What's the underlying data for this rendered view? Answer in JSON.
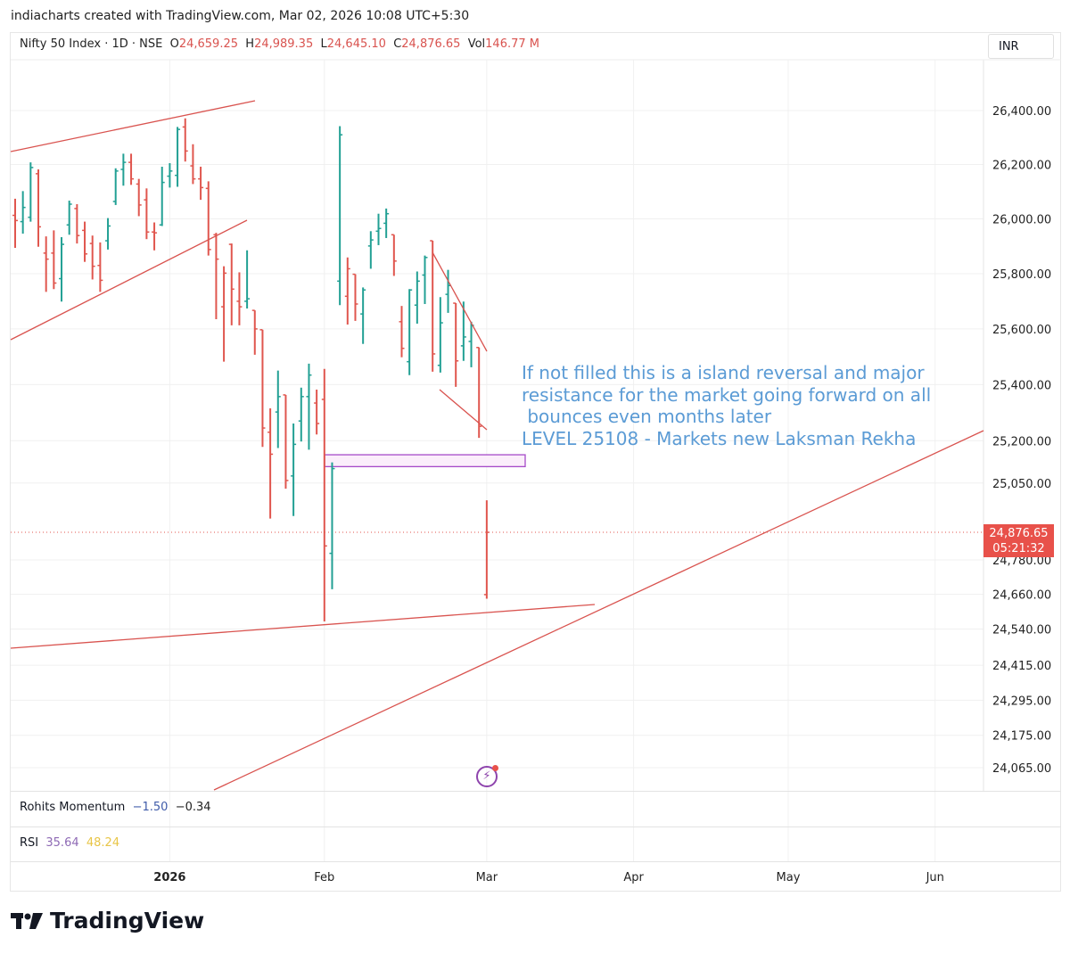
{
  "caption": "indiacharts created with TradingView.com, Mar 02, 2026 10:08 UTC+5:30",
  "legend": {
    "symbol": "Nifty 50 Index · 1D · NSE",
    "o_label": "O",
    "o": "24,659.25",
    "h_label": "H",
    "h": "24,989.35",
    "l_label": "L",
    "l": "24,645.10",
    "c_label": "C",
    "c": "24,876.65",
    "vol_label": "Vol",
    "vol": "146.77 M"
  },
  "currency": "INR",
  "price_tag": {
    "price": "24,876.65",
    "countdown": "05:21:32"
  },
  "annotation": "If not filled this is a island reversal and major\nresistance for the market going forward on all\n bounces even months later\nLEVEL 25108 - Markets new Laksman Rekha",
  "indicators": {
    "momentum": {
      "name": "Rohits Momentum",
      "v1": "−1.50",
      "v2": "−0.34"
    },
    "rsi": {
      "name": "RSI",
      "v1": "35.64",
      "v2": "48.24"
    }
  },
  "logo": "TradingView",
  "colors": {
    "up": "#22a094",
    "down": "#e0564e",
    "drawing": "#d9534f",
    "gap_box": "#a64ac9",
    "annotation": "#5b9bd5"
  },
  "chart_data": {
    "type": "ohlc-bar",
    "y_scale": "log",
    "grid": true,
    "y_ticks": [
      "26,400.00",
      "26,200.00",
      "26,000.00",
      "25,800.00",
      "25,600.00",
      "25,400.00",
      "25,200.00",
      "25,050.00",
      "24,780.00",
      "24,660.00",
      "24,540.00",
      "24,415.00",
      "24,295.00",
      "24,175.00",
      "24,065.00"
    ],
    "y_tick_values": [
      26400,
      26200,
      26000,
      25800,
      25600,
      25400,
      25200,
      25050,
      24780,
      24660,
      24540,
      24415,
      24295,
      24175,
      24065
    ],
    "x_labels": [
      "2026",
      "Feb",
      "Mar",
      "Apr",
      "May",
      "Jun"
    ],
    "last_price": 24876.65,
    "gap_zone": [
      25108,
      25150
    ],
    "ohlc": [
      [
        26013,
        26074,
        25894,
        25994
      ],
      [
        25990,
        26102,
        25946,
        26042
      ],
      [
        26006,
        26208,
        25990,
        26189
      ],
      [
        26166,
        26182,
        25898,
        25971
      ],
      [
        25875,
        25936,
        25734,
        25853
      ],
      [
        25875,
        25958,
        25744,
        25766
      ],
      [
        25782,
        25933,
        25699,
        25907
      ],
      [
        25978,
        26067,
        25942,
        26054
      ],
      [
        26038,
        26054,
        25910,
        25939
      ],
      [
        25958,
        25990,
        25843,
        25872
      ],
      [
        25910,
        25939,
        25779,
        25827
      ],
      [
        25830,
        25914,
        25734,
        25776
      ],
      [
        25920,
        26003,
        25888,
        25974
      ],
      [
        26064,
        26186,
        26051,
        26176
      ],
      [
        26182,
        26240,
        26122,
        26208
      ],
      [
        26208,
        26240,
        26125,
        26147
      ],
      [
        26128,
        26147,
        26010,
        26051
      ],
      [
        26070,
        26112,
        25926,
        25952
      ],
      [
        25952,
        25987,
        25885,
        25949
      ],
      [
        25978,
        26192,
        25974,
        26134
      ],
      [
        26157,
        26205,
        26115,
        26176
      ],
      [
        26160,
        26339,
        26118,
        26330
      ],
      [
        26339,
        26371,
        26211,
        26250
      ],
      [
        26195,
        26275,
        26128,
        26147
      ],
      [
        26147,
        26192,
        26070,
        26115
      ],
      [
        26112,
        26138,
        25866,
        25888
      ],
      [
        25942,
        25949,
        25635,
        25853
      ],
      [
        25680,
        25827,
        25482,
        25802
      ],
      [
        25907,
        25910,
        25613,
        25744
      ],
      [
        25700,
        25805,
        25613,
        25680
      ],
      [
        25700,
        25885,
        25674,
        25709
      ],
      [
        25667,
        25667,
        25507,
        25600
      ],
      [
        25597,
        25597,
        25178,
        25245
      ],
      [
        25230,
        25315,
        24925,
        25152
      ],
      [
        25302,
        25450,
        25174,
        25357
      ],
      [
        25363,
        25363,
        25030,
        25059
      ],
      [
        25075,
        25261,
        24934,
        25187
      ],
      [
        25270,
        25389,
        25197,
        25357
      ],
      [
        25357,
        25475,
        25168,
        25434
      ],
      [
        25334,
        25382,
        25222,
        25261
      ],
      [
        25347,
        25456,
        24566,
        24829
      ],
      [
        24803,
        25123,
        24678,
        25101
      ],
      [
        25773,
        26342,
        25686,
        26310
      ],
      [
        25718,
        25859,
        25616,
        25818
      ],
      [
        25798,
        25798,
        25629,
        25690
      ],
      [
        25654,
        25750,
        25546,
        25741
      ],
      [
        25901,
        25955,
        25818,
        25923
      ],
      [
        25955,
        26019,
        25904,
        25965
      ],
      [
        25984,
        26038,
        25930,
        26019
      ],
      [
        25942,
        25942,
        25792,
        25846
      ],
      [
        25626,
        25683,
        25498,
        25530
      ],
      [
        25482,
        25744,
        25434,
        25741
      ],
      [
        25686,
        25808,
        25619,
        25773
      ],
      [
        25795,
        25866,
        25690,
        25859
      ],
      [
        25920,
        25920,
        25446,
        25510
      ],
      [
        25469,
        25715,
        25443,
        25622
      ],
      [
        25725,
        25814,
        25658,
        25757
      ],
      [
        25693,
        25693,
        25392,
        25485
      ],
      [
        25539,
        25699,
        25485,
        25571
      ],
      [
        25555,
        25626,
        25462,
        25613
      ],
      [
        25533,
        25533,
        25210,
        25251
      ],
      [
        24659.25,
        24989.35,
        24645.1,
        24876.65
      ]
    ]
  }
}
